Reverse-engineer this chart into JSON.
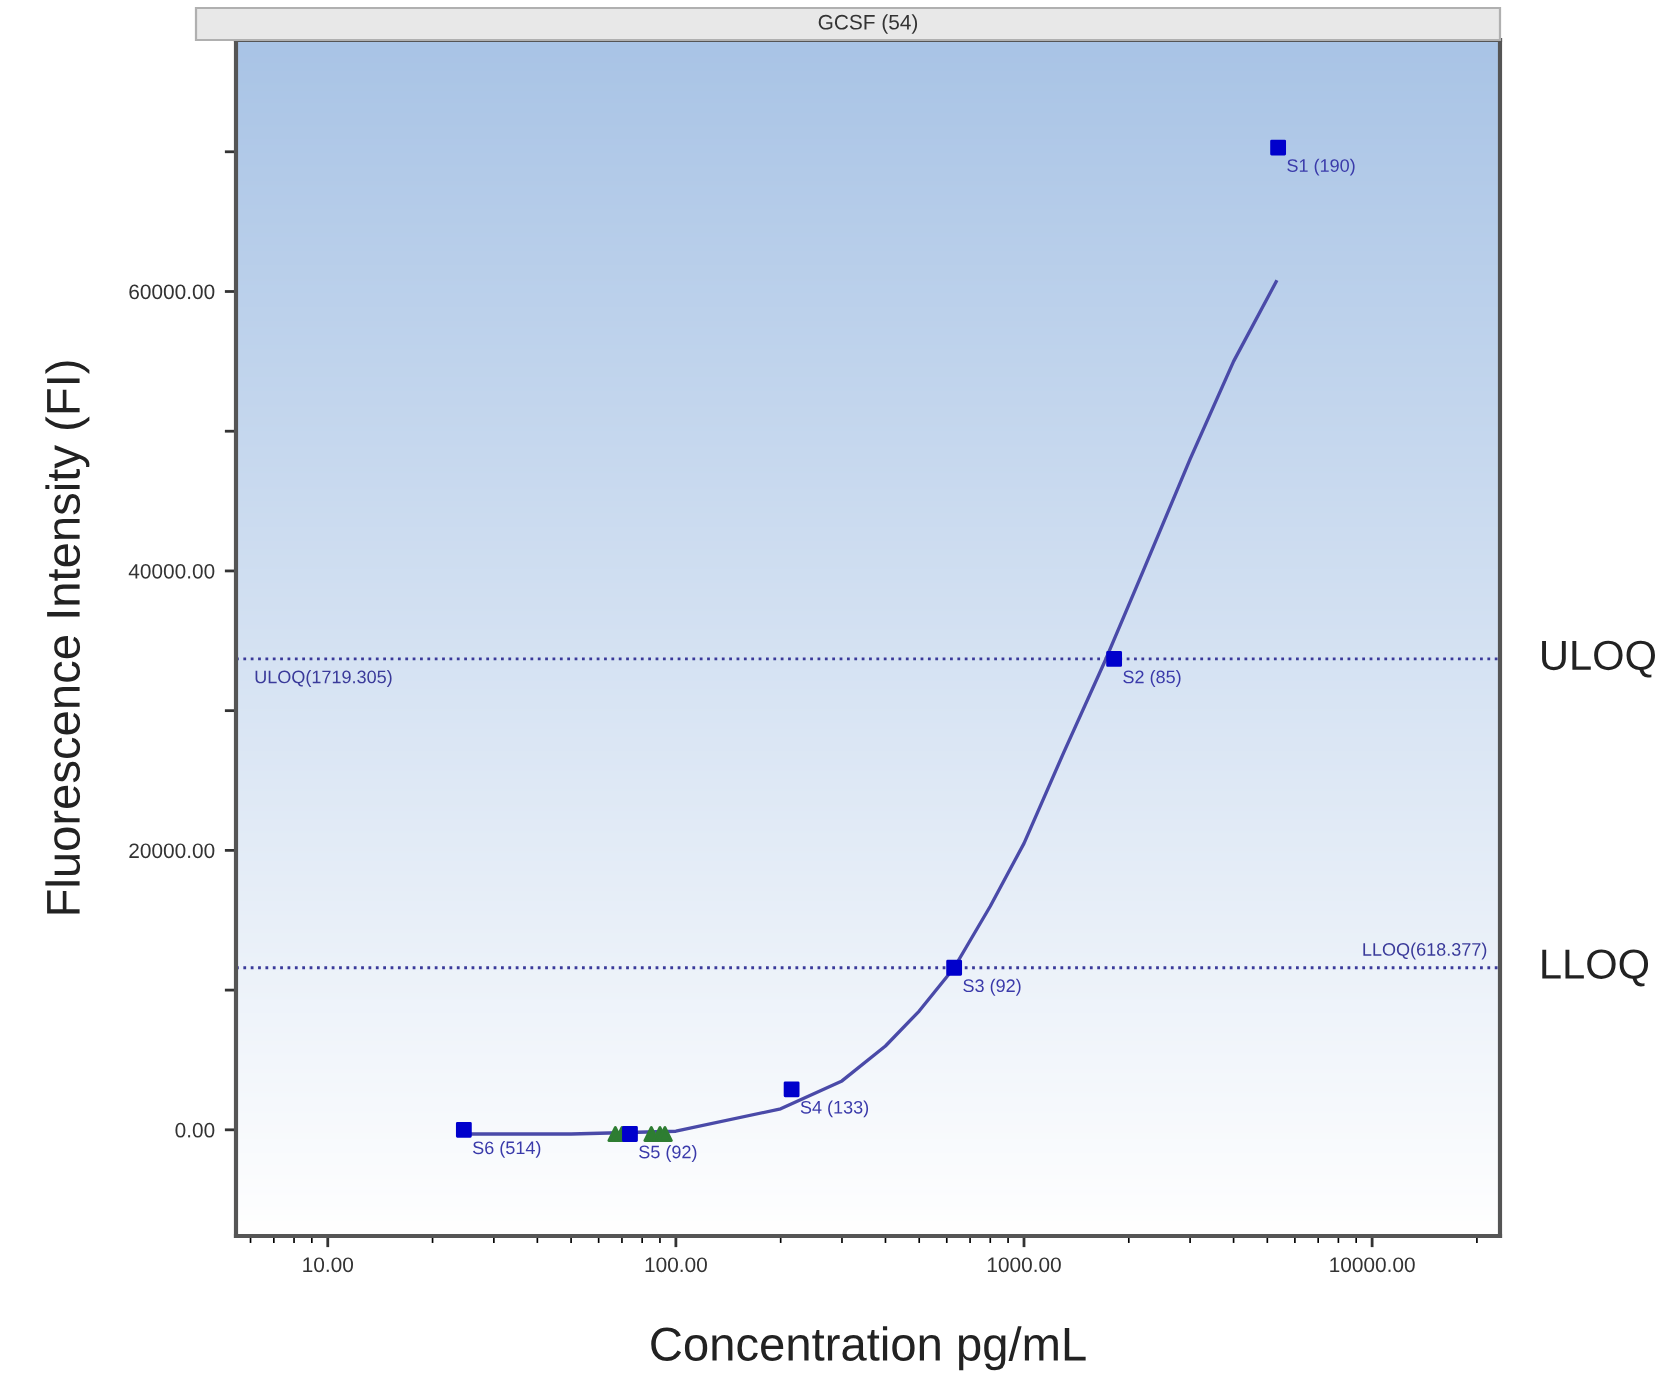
{
  "chart_data": {
    "type": "scatter",
    "title": "GCSF (54)",
    "xlabel": "Concentration pg/mL",
    "ylabel": "Fluorescence Intensity (FI)",
    "log": "x",
    "xlim": [
      5.45,
      23300
    ],
    "ylim": [
      -7600,
      78000
    ],
    "xticks": [
      {
        "value": 10,
        "label": "10.00"
      },
      {
        "value": 100,
        "label": "100.00"
      },
      {
        "value": 1000,
        "label": "1000.00"
      },
      {
        "value": 10000,
        "label": "10000.00"
      }
    ],
    "yticks": [
      {
        "value": 0,
        "label": "0.00"
      },
      {
        "value": 10000,
        "label": null
      },
      {
        "value": 20000,
        "label": "20000.00"
      },
      {
        "value": 30000,
        "label": null
      },
      {
        "value": 40000,
        "label": "40000.00"
      },
      {
        "value": 50000,
        "label": null
      },
      {
        "value": 60000,
        "label": "60000.00"
      },
      {
        "value": 70000,
        "label": null
      }
    ],
    "grid": false,
    "legend": false,
    "series": [
      {
        "type": "line",
        "color": "#4a4aa8",
        "marker": "none",
        "line_style": "solid",
        "x": [
          25,
          50,
          100,
          200,
          300,
          400,
          500,
          630,
          800,
          1000,
          1300,
          1719,
          2200,
          3000,
          4000,
          5300
        ],
        "values": [
          -300,
          -300,
          -100,
          1500,
          3500,
          6000,
          8500,
          11600,
          16000,
          20500,
          27000,
          33700,
          40000,
          48000,
          55000,
          60700
        ]
      },
      {
        "color": "#2e7d32",
        "marker": "triangle",
        "x": [
          67,
          70,
          85,
          90,
          93
        ],
        "values": [
          -300,
          -300,
          -300,
          -300,
          -300
        ]
      },
      {
        "color": "#0000cc",
        "marker": "square",
        "x": [
          5370,
          1815,
          630,
          215,
          73.8,
          24.6
        ],
        "values": [
          70300,
          33700,
          11600,
          2900,
          -300,
          0
        ]
      }
    ],
    "ref_lines": [
      {
        "axis": "y",
        "value": 33700,
        "label": "ULOQ(1719.305)",
        "color": "#3a3a9a",
        "line_style": "dotted"
      },
      {
        "axis": "y",
        "value": 11600,
        "label": "LLOQ(618.377)",
        "color": "#3a3a9a",
        "line_style": "dotted"
      }
    ],
    "annotations": [
      {
        "text": "S1 (190)",
        "x": 5370,
        "y": 70300
      },
      {
        "text": "S2 (85)",
        "x": 1815,
        "y": 33700
      },
      {
        "text": "S3 (92)",
        "x": 630,
        "y": 11600
      },
      {
        "text": "S4 (133)",
        "x": 215,
        "y": 2900
      },
      {
        "text": "S5 (92)",
        "x": 73.8,
        "y": -300
      },
      {
        "text": "S6 (514)",
        "x": 24.6,
        "y": 0
      },
      "ULOQ",
      "LLOQ"
    ]
  }
}
